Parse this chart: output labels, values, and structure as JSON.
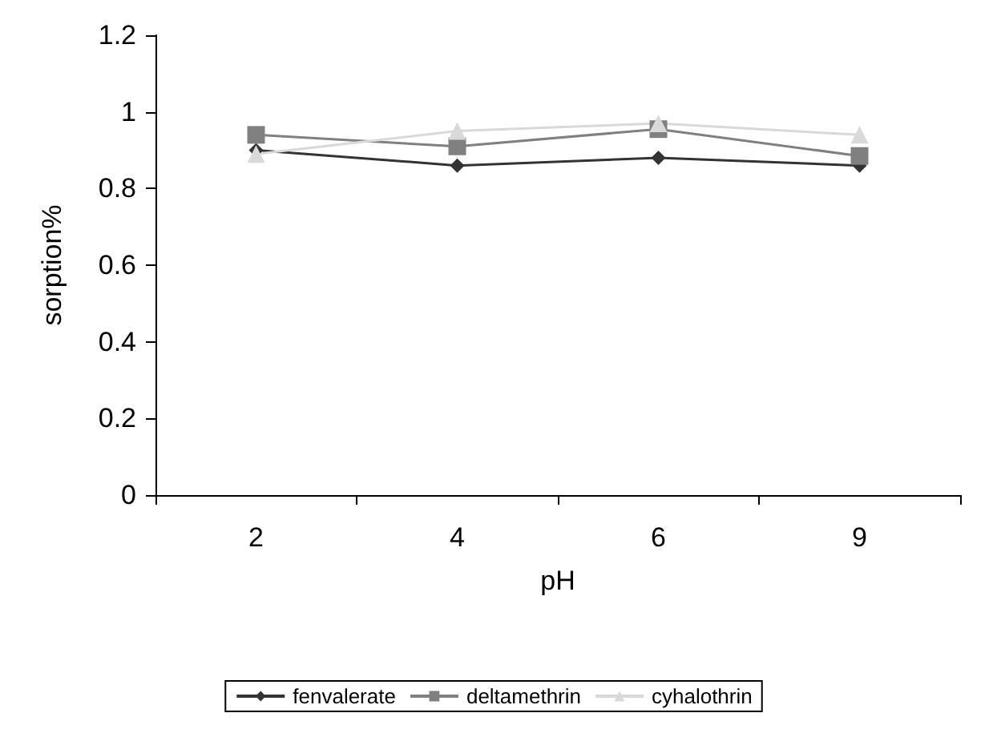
{
  "chart_data": {
    "type": "line",
    "xlabel": "pH",
    "ylabel": "sorption%",
    "categories": [
      "2",
      "4",
      "6",
      "9"
    ],
    "series": [
      {
        "name": "fenvalerate",
        "color": "#333333",
        "marker": "diamond",
        "values": [
          0.9,
          0.86,
          0.88,
          0.86
        ]
      },
      {
        "name": "deltamethrin",
        "color": "#808080",
        "marker": "square",
        "values": [
          0.94,
          0.91,
          0.955,
          0.885
        ]
      },
      {
        "name": "cyhalothrin",
        "color": "#d9d9d9",
        "marker": "triangle",
        "values": [
          0.89,
          0.95,
          0.97,
          0.94
        ]
      }
    ],
    "ylim": [
      0,
      1.2
    ],
    "yticks": [
      0,
      0.2,
      0.4,
      0.6,
      0.8,
      1,
      1.2
    ],
    "legend": "bottom",
    "grid": false
  }
}
